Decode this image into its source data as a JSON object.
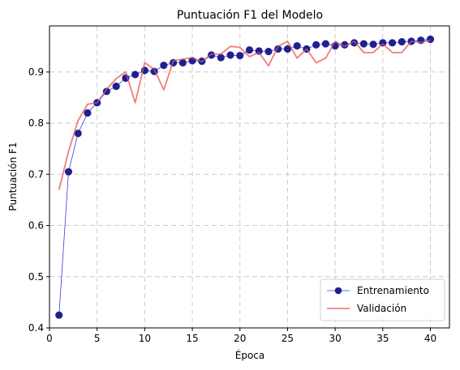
{
  "chart_data": {
    "type": "line",
    "title": "Puntuación F1 del Modelo",
    "xlabel": "Época",
    "ylabel": "Puntuación F1",
    "xlim": [
      0,
      42
    ],
    "ylim": [
      0.4,
      0.99
    ],
    "xticks": [
      0,
      5,
      10,
      15,
      20,
      25,
      30,
      35,
      40
    ],
    "yticks": [
      0.4,
      0.5,
      0.6,
      0.7,
      0.8,
      0.9
    ],
    "grid": true,
    "legend_position": "bottom-right",
    "x": [
      1,
      2,
      3,
      4,
      5,
      6,
      7,
      8,
      9,
      10,
      11,
      12,
      13,
      14,
      15,
      16,
      17,
      18,
      19,
      20,
      21,
      22,
      23,
      24,
      25,
      26,
      27,
      28,
      29,
      30,
      31,
      32,
      33,
      34,
      35,
      36,
      37,
      38,
      39,
      40
    ],
    "series": [
      {
        "name": "Entrenamiento",
        "color": "#1f1f8f",
        "marker": "circle",
        "values": [
          0.425,
          0.705,
          0.78,
          0.82,
          0.84,
          0.862,
          0.872,
          0.888,
          0.895,
          0.903,
          0.901,
          0.913,
          0.918,
          0.918,
          0.922,
          0.921,
          0.933,
          0.928,
          0.933,
          0.932,
          0.943,
          0.941,
          0.94,
          0.945,
          0.945,
          0.951,
          0.945,
          0.953,
          0.955,
          0.951,
          0.953,
          0.957,
          0.955,
          0.954,
          0.957,
          0.957,
          0.959,
          0.96,
          0.962,
          0.964
        ]
      },
      {
        "name": "Validación",
        "color": "#f08080",
        "marker": "none",
        "values": [
          0.67,
          0.745,
          0.805,
          0.837,
          0.84,
          0.866,
          0.887,
          0.9,
          0.84,
          0.918,
          0.905,
          0.865,
          0.922,
          0.925,
          0.928,
          0.92,
          0.935,
          0.935,
          0.95,
          0.948,
          0.93,
          0.938,
          0.912,
          0.95,
          0.96,
          0.927,
          0.945,
          0.918,
          0.927,
          0.96,
          0.95,
          0.96,
          0.938,
          0.938,
          0.955,
          0.938,
          0.938,
          0.96,
          0.958,
          0.962
        ]
      }
    ]
  }
}
